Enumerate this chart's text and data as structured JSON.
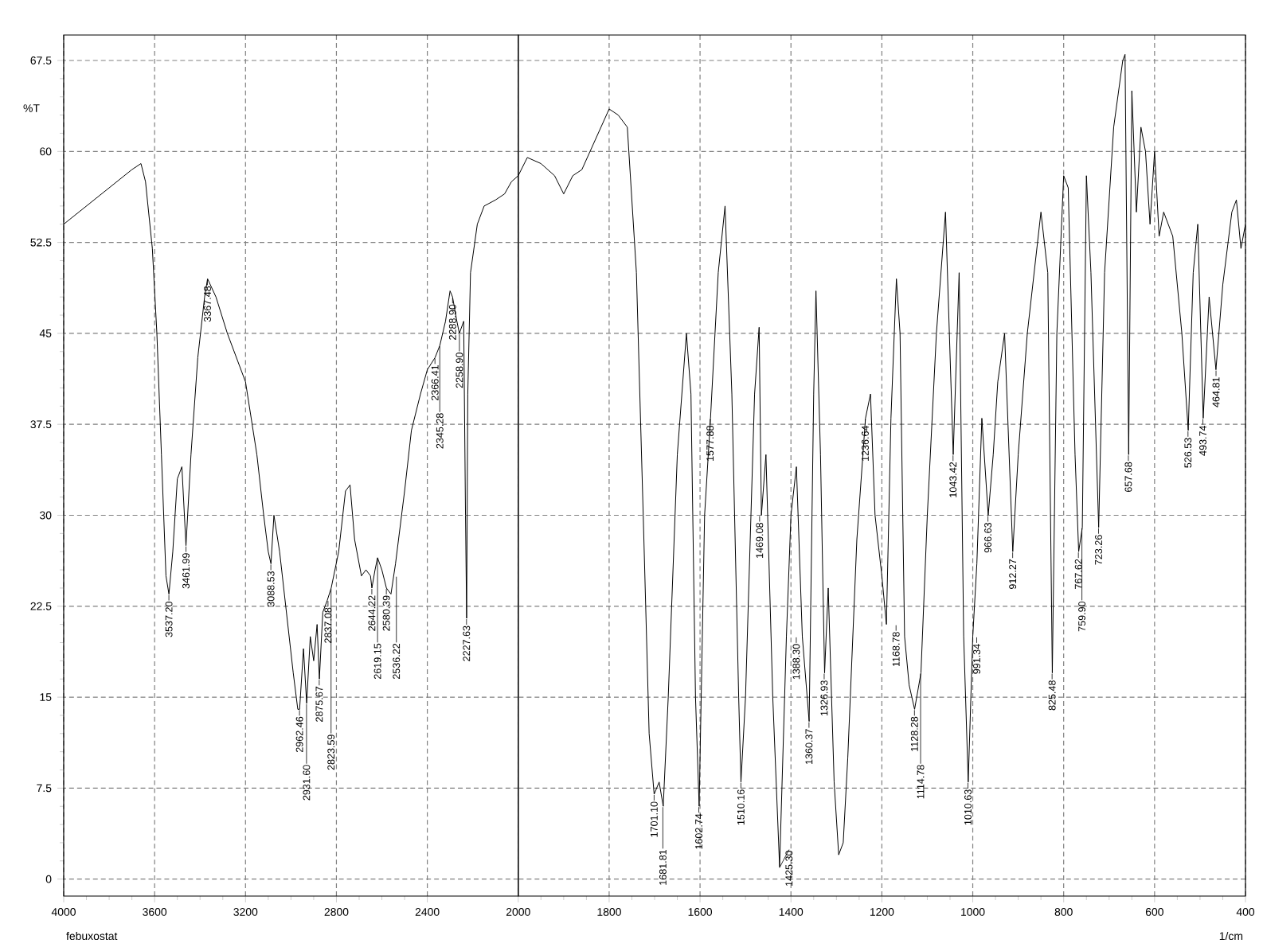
{
  "chart_data": [
    {
      "type": "line",
      "title": "febuxostat",
      "ylabel": "%T",
      "color": "#000000",
      "x": [
        4000,
        3900,
        3800,
        3700,
        3660,
        3640,
        3610,
        3590,
        3570,
        3550,
        3537,
        3520,
        3500,
        3480,
        3462,
        3440,
        3410,
        3380,
        3367,
        3330,
        3280,
        3200,
        3150,
        3120,
        3100,
        3088,
        3075,
        3050,
        3020,
        2990,
        2970,
        2962,
        2945,
        2931,
        2915,
        2900,
        2885,
        2875,
        2860,
        2840,
        2823,
        2790,
        2760,
        2740,
        2720,
        2690,
        2670,
        2650,
        2644,
        2630,
        2619,
        2600,
        2580,
        2560,
        2540,
        2500,
        2470,
        2430,
        2400,
        2366,
        2345,
        2320,
        2300,
        2289,
        2270,
        2259,
        2240,
        2232,
        2227,
        2222,
        2210,
        2180,
        2150,
        2100,
        2060,
        2030,
        2000
      ],
      "values": [
        54,
        55.5,
        57,
        58.5,
        59,
        57.5,
        52,
        45,
        35,
        25,
        23.5,
        27,
        33,
        34,
        27.5,
        35,
        43,
        48,
        49.5,
        48,
        45,
        41,
        35,
        30,
        27,
        26,
        30,
        27,
        22,
        17,
        14,
        14,
        19,
        14.5,
        20,
        18,
        21,
        16.5,
        22,
        23,
        24,
        27,
        32,
        32.5,
        28,
        25,
        25.5,
        25,
        24,
        25.5,
        26.5,
        25.5,
        24,
        23.5,
        26,
        32,
        37,
        40,
        42,
        43,
        44,
        46,
        48.5,
        48,
        46,
        45,
        46,
        30,
        21.5,
        40,
        50,
        54,
        55.5,
        56,
        56.5,
        57.5,
        58
      ],
      "xlim": [
        4000,
        2000
      ],
      "ylim": [
        -1.4,
        69.6
      ],
      "xticks": [
        4000,
        3600,
        3200,
        2800,
        2400
      ],
      "yticks": [
        0,
        7.5,
        15,
        22.5,
        30,
        37.5,
        45,
        52.5,
        60,
        67.5
      ],
      "grid": true,
      "annotations": [
        {
          "text": "3537.20",
          "x": 3537.2,
          "y": 23.5
        },
        {
          "text": "3461.99",
          "x": 3461.99,
          "y": 27.5
        },
        {
          "text": "3367.48",
          "x": 3367.48,
          "y": 49.5
        },
        {
          "text": "3088.53",
          "x": 3088.53,
          "y": 26
        },
        {
          "text": "2962.46",
          "x": 2962.46,
          "y": 14
        },
        {
          "text": "2931.60",
          "x": 2931.6,
          "y": 14.5
        },
        {
          "text": "2875.67",
          "x": 2875.67,
          "y": 16.5
        },
        {
          "text": "2837.08",
          "x": 2837.08,
          "y": 23
        },
        {
          "text": "2823.59",
          "x": 2823.59,
          "y": 24
        },
        {
          "text": "2644.22",
          "x": 2644.22,
          "y": 24
        },
        {
          "text": "2619.15",
          "x": 2619.15,
          "y": 26.5
        },
        {
          "text": "2580.39",
          "x": 2580.39,
          "y": 24
        },
        {
          "text": "2536.22",
          "x": 2536.22,
          "y": 25
        },
        {
          "text": "2366.41",
          "x": 2366.41,
          "y": 43
        },
        {
          "text": "2345.28",
          "x": 2345.28,
          "y": 44
        },
        {
          "text": "2288.90",
          "x": 2288.9,
          "y": 48
        },
        {
          "text": "2258.90",
          "x": 2258.9,
          "y": 45
        },
        {
          "text": "2227.63",
          "x": 2227.63,
          "y": 21.5
        }
      ]
    },
    {
      "type": "line",
      "xlabel": "1/cm",
      "color": "#000000",
      "tick_labels": "x",
      "x": [
        2000,
        1980,
        1950,
        1920,
        1900,
        1880,
        1860,
        1830,
        1800,
        1780,
        1760,
        1740,
        1725,
        1712,
        1701,
        1690,
        1681,
        1670,
        1650,
        1630,
        1620,
        1610,
        1602,
        1590,
        1577,
        1560,
        1545,
        1530,
        1515,
        1510,
        1500,
        1480,
        1470,
        1465,
        1455,
        1440,
        1425,
        1410,
        1400,
        1388,
        1375,
        1360,
        1350,
        1345,
        1335,
        1326,
        1318,
        1305,
        1295,
        1285,
        1275,
        1255,
        1236,
        1225,
        1215,
        1200,
        1190,
        1180,
        1168,
        1160,
        1150,
        1140,
        1128,
        1114,
        1100,
        1080,
        1060,
        1043,
        1030,
        1020,
        1010,
        1000,
        991,
        980,
        966,
        955,
        945,
        930,
        912,
        900,
        880,
        850,
        835,
        825,
        815,
        800,
        790,
        775,
        767,
        759,
        750,
        740,
        723,
        710,
        690,
        670,
        665,
        657,
        650,
        640,
        630,
        620,
        610,
        600,
        590,
        580,
        560,
        540,
        526,
        515,
        505,
        493,
        480,
        465,
        450,
        430,
        420,
        410,
        400
      ],
      "values": [
        58,
        59.5,
        59,
        58,
        56.5,
        58,
        58.5,
        61,
        63.5,
        63,
        62,
        50,
        30,
        12,
        7,
        8,
        6,
        15,
        35,
        45,
        40,
        15,
        6,
        30,
        38,
        50,
        55.5,
        40,
        15,
        8,
        15,
        40,
        45.5,
        30,
        35,
        15,
        1,
        20,
        30,
        34,
        20,
        13,
        40,
        48.5,
        35,
        17,
        24,
        8,
        2,
        3,
        10,
        28,
        38,
        40,
        30,
        25,
        21,
        38,
        49.5,
        45,
        20,
        16,
        14,
        17,
        30,
        45,
        55,
        35,
        50,
        20,
        8,
        20,
        26,
        38,
        30,
        35,
        41,
        45,
        27,
        35,
        45,
        55,
        50,
        17,
        45,
        58,
        57,
        35,
        27,
        29,
        58,
        50,
        29,
        50,
        62,
        67.5,
        68,
        35,
        65,
        55,
        62,
        60,
        54,
        60,
        53,
        55,
        53,
        45,
        37,
        50,
        54,
        38,
        48,
        42,
        49,
        55,
        56,
        52,
        54
      ],
      "xlim": [
        2000,
        400
      ],
      "ylim": [
        -1.4,
        69.6
      ],
      "xticks": [
        2000,
        1800,
        1600,
        1400,
        1200,
        1000,
        800,
        600,
        400
      ],
      "yticks": [
        0,
        7.5,
        15,
        22.5,
        30,
        37.5,
        45,
        52.5,
        60,
        67.5
      ],
      "grid": true,
      "annotations": [
        {
          "text": "1701.10",
          "x": 1701.1,
          "y": 7
        },
        {
          "text": "1681.81",
          "x": 1681.81,
          "y": 6
        },
        {
          "text": "1602.74",
          "x": 1602.74,
          "y": 6
        },
        {
          "text": "1577.88",
          "x": 1577.88,
          "y": 38
        },
        {
          "text": "1510.16",
          "x": 1510.16,
          "y": 8
        },
        {
          "text": "1469.08",
          "x": 1469.08,
          "y": 30
        },
        {
          "text": "1425.30",
          "x": 1425.3,
          "y": 1
        },
        {
          "text": "1388.30",
          "x": 1388.3,
          "y": 20
        },
        {
          "text": "1360.37",
          "x": 1360.37,
          "y": 13
        },
        {
          "text": "1326.93",
          "x": 1326.93,
          "y": 17
        },
        {
          "text": "1236.64",
          "x": 1236.64,
          "y": 38
        },
        {
          "text": "1168.78",
          "x": 1168.78,
          "y": 21
        },
        {
          "text": "1128.28",
          "x": 1128.28,
          "y": 14
        },
        {
          "text": "1114.78",
          "x": 1114.78,
          "y": 17
        },
        {
          "text": "1043.42",
          "x": 1043.42,
          "y": 35
        },
        {
          "text": "1010.63",
          "x": 1010.63,
          "y": 8
        },
        {
          "text": "991.34",
          "x": 991.34,
          "y": 20
        },
        {
          "text": "966.63",
          "x": 966.63,
          "y": 30
        },
        {
          "text": "912.27",
          "x": 912.27,
          "y": 27
        },
        {
          "text": "825.48",
          "x": 825.48,
          "y": 17
        },
        {
          "text": "767.62",
          "x": 767.62,
          "y": 27
        },
        {
          "text": "759.90",
          "x": 759.9,
          "y": 29
        },
        {
          "text": "723.26",
          "x": 723.26,
          "y": 29
        },
        {
          "text": "657.68",
          "x": 657.68,
          "y": 35
        },
        {
          "text": "526.53",
          "x": 526.53,
          "y": 37
        },
        {
          "text": "493.74",
          "x": 493.74,
          "y": 38
        },
        {
          "text": "464.81",
          "x": 464.81,
          "y": 42
        }
      ]
    }
  ]
}
